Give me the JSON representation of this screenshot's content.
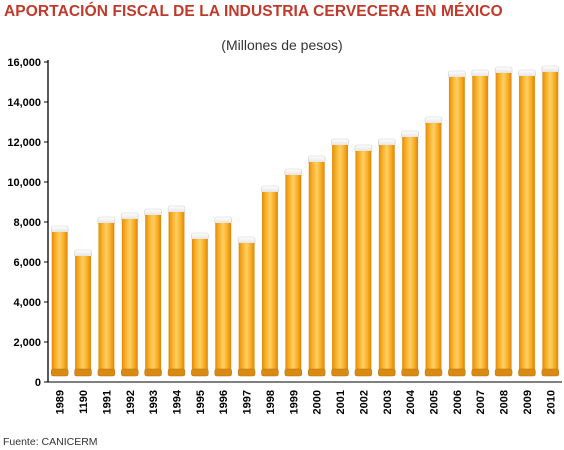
{
  "chart_data": {
    "type": "bar",
    "title": "APORTACIÓN FISCAL DE LA INDUSTRIA CERVECERA EN MÉXICO",
    "subtitle": "(Millones de pesos)",
    "source": "Fuente: CANICERM",
    "xlabel": "",
    "ylabel": "",
    "categories": [
      "1989",
      "1190",
      "1991",
      "1992",
      "1993",
      "1994",
      "1995",
      "1996",
      "1997",
      "1998",
      "1999",
      "2000",
      "2001",
      "2002",
      "2003",
      "2004",
      "2005",
      "2006",
      "2007",
      "2008",
      "2009",
      "2010"
    ],
    "values": [
      7500,
      6300,
      7950,
      8150,
      8350,
      8500,
      7150,
      7950,
      6950,
      9500,
      10350,
      11000,
      11850,
      11550,
      11850,
      12250,
      12950,
      15250,
      15300,
      15450,
      15300,
      15500
    ],
    "ylim": [
      0,
      16000
    ],
    "yticks": [
      0,
      2000,
      4000,
      6000,
      8000,
      10000,
      12000,
      14000,
      16000
    ],
    "ytick_labels": [
      "0",
      "2,000",
      "4,000",
      "6,000",
      "8,000",
      "10,000",
      "12,000",
      "14,000",
      "16,000"
    ],
    "grid": false,
    "colors": {
      "bar": "#f5a51c",
      "bar_highlight": "#ffd36b",
      "foam": "#f3f3f3",
      "title": "#c0392b",
      "axis": "#000000"
    }
  }
}
